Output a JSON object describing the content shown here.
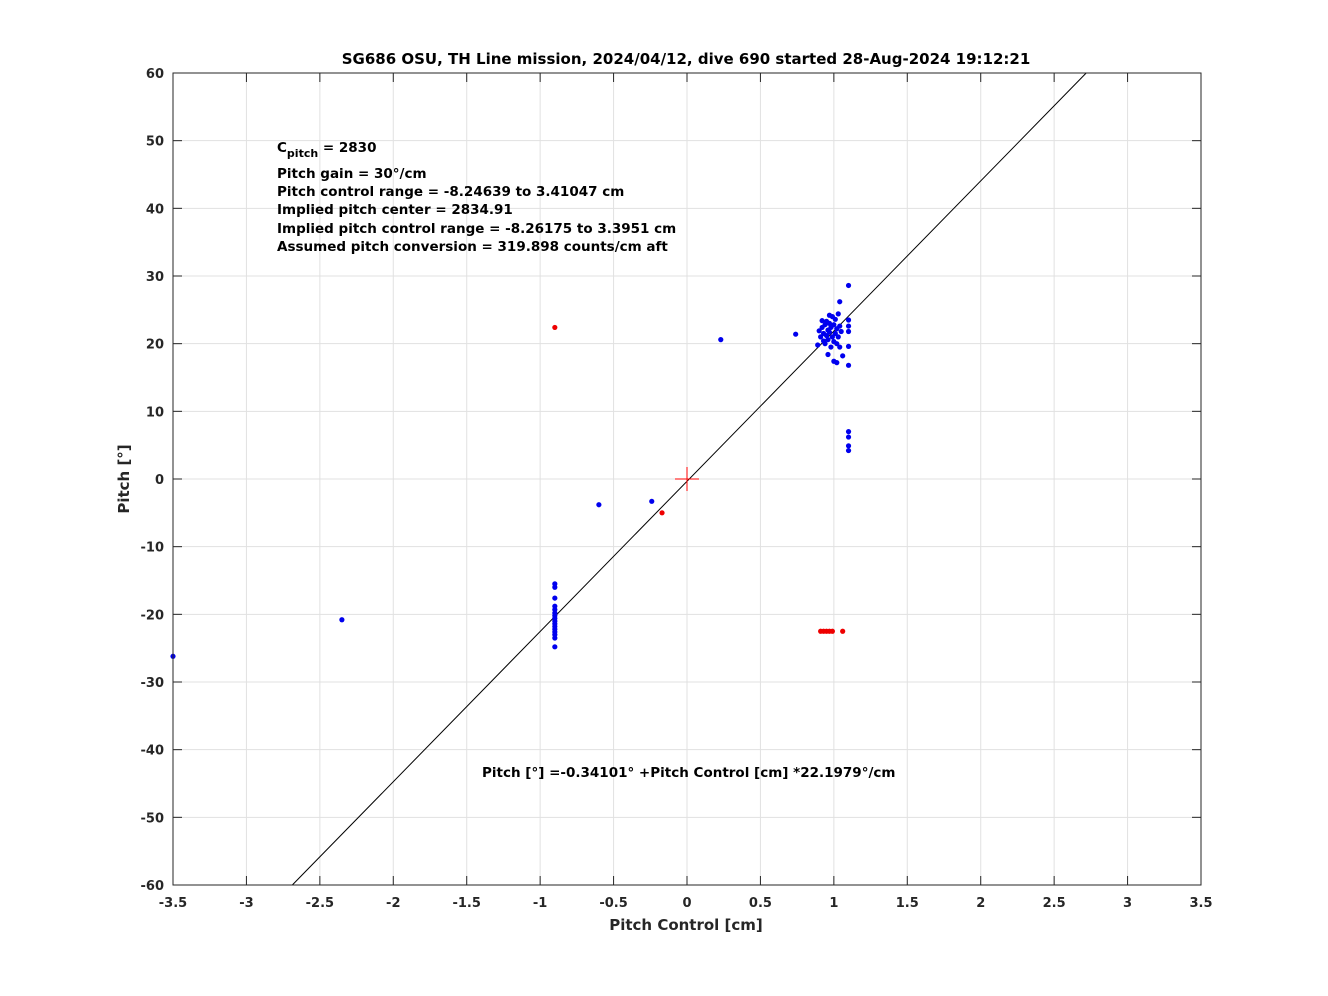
{
  "chart_data": {
    "type": "scatter",
    "title": "SG686 OSU, TH Line mission, 2024/04/12, dive 690 started 28-Aug-2024 19:12:21",
    "xlabel": "Pitch Control [cm]",
    "ylabel": "Pitch [°]",
    "xlim": [
      -3.5,
      3.5
    ],
    "ylim": [
      -60,
      60
    ],
    "grid": true,
    "x_ticks": [
      "-3.5",
      "-3",
      "-2.5",
      "-2",
      "-1.5",
      "-1",
      "-0.5",
      "0",
      "0.5",
      "1",
      "1.5",
      "2",
      "2.5",
      "3",
      "3.5"
    ],
    "y_ticks": [
      "-60",
      "-50",
      "-40",
      "-30",
      "-20",
      "-10",
      "0",
      "10",
      "20",
      "30",
      "40",
      "50",
      "60"
    ],
    "annotation_lines": {
      "cpitch_base": "C",
      "cpitch_sub": "pitch",
      "cpitch_value": " = 2830",
      "line2": "Pitch gain = 30°/cm",
      "line3": "Pitch control range = -8.24639 to 3.41047 cm",
      "line4": "Implied pitch center = 2834.91",
      "line5": "Implied pitch control range = -8.26175 to 3.3951 cm",
      "line6": "Assumed pitch conversion = 319.898 counts/cm aft"
    },
    "fit_label": "Pitch [°] =-0.34101° +Pitch Control [cm] *22.1979°/cm",
    "fit": {
      "intercept": -0.34101,
      "slope": 22.1979
    },
    "center_marker": {
      "x": 0,
      "y": 0,
      "color": "#ff0000"
    },
    "colors": {
      "inlier": "#0000ee",
      "outlier": "#ee0000",
      "fit_line": "#000000",
      "grid": "#e1e1e1"
    },
    "series": [
      {
        "color": "#0000ee",
        "points": [
          [
            -3.5,
            -26.2
          ],
          [
            -2.35,
            -20.8
          ],
          [
            -0.6,
            -3.8
          ],
          [
            -0.24,
            -3.3
          ],
          [
            0.23,
            20.6
          ],
          [
            0.74,
            21.4
          ],
          [
            -0.9,
            -15.5
          ],
          [
            -0.9,
            -16.0
          ],
          [
            -0.9,
            -17.6
          ],
          [
            -0.9,
            -18.8
          ],
          [
            -0.9,
            -19.3
          ],
          [
            -0.9,
            -19.8
          ],
          [
            -0.9,
            -20.2
          ],
          [
            -0.9,
            -20.6
          ],
          [
            -0.9,
            -21.0
          ],
          [
            -0.9,
            -21.4
          ],
          [
            -0.9,
            -21.8
          ],
          [
            -0.9,
            -22.2
          ],
          [
            -0.9,
            -22.6
          ],
          [
            -0.9,
            -23.0
          ],
          [
            -0.9,
            -23.5
          ],
          [
            -0.9,
            -24.8
          ],
          [
            0.89,
            19.8
          ],
          [
            0.9,
            21.9
          ],
          [
            0.91,
            21.0
          ],
          [
            0.92,
            22.4
          ],
          [
            0.93,
            20.4
          ],
          [
            0.93,
            21.5
          ],
          [
            0.94,
            22.8
          ],
          [
            0.94,
            20.0
          ],
          [
            0.95,
            21.2
          ],
          [
            0.95,
            23.3
          ],
          [
            0.96,
            22.0
          ],
          [
            0.96,
            20.6
          ],
          [
            0.97,
            21.7
          ],
          [
            0.97,
            23.0
          ],
          [
            0.98,
            19.5
          ],
          [
            0.98,
            22.4
          ],
          [
            0.99,
            21.0
          ],
          [
            0.99,
            24.0
          ],
          [
            1.0,
            20.3
          ],
          [
            1.0,
            22.8
          ],
          [
            1.01,
            21.5
          ],
          [
            1.01,
            23.6
          ],
          [
            1.02,
            20.0
          ],
          [
            1.02,
            22.2
          ],
          [
            1.03,
            24.4
          ],
          [
            1.03,
            21.0
          ],
          [
            1.04,
            22.6
          ],
          [
            1.04,
            19.5
          ],
          [
            1.05,
            21.8
          ],
          [
            0.92,
            23.4
          ],
          [
            0.97,
            24.2
          ],
          [
            1.0,
            17.4
          ],
          [
            1.02,
            17.2
          ],
          [
            1.06,
            18.2
          ],
          [
            1.04,
            26.2
          ],
          [
            1.1,
            28.6
          ],
          [
            1.1,
            23.5
          ],
          [
            1.1,
            22.6
          ],
          [
            1.1,
            21.8
          ],
          [
            1.1,
            19.6
          ],
          [
            1.1,
            16.8
          ],
          [
            0.96,
            18.4
          ],
          [
            1.1,
            7.0
          ],
          [
            1.1,
            6.2
          ],
          [
            1.1,
            4.9
          ],
          [
            1.1,
            4.2
          ]
        ]
      },
      {
        "color": "#ee0000",
        "points": [
          [
            -0.9,
            22.4
          ],
          [
            -0.17,
            -5.0
          ],
          [
            0.91,
            -22.5
          ],
          [
            0.93,
            -22.5
          ],
          [
            0.95,
            -22.5
          ],
          [
            0.97,
            -22.5
          ],
          [
            0.99,
            -22.5
          ],
          [
            1.06,
            -22.5
          ]
        ]
      }
    ]
  }
}
